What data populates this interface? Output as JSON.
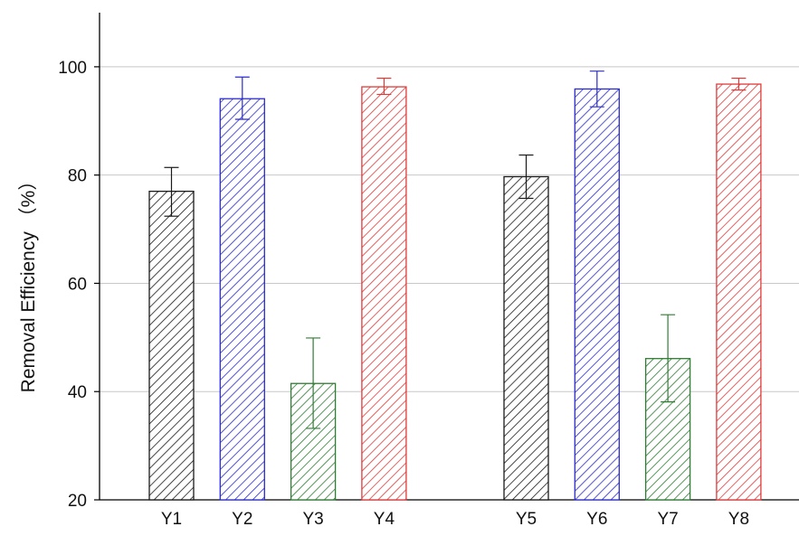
{
  "chart_data": {
    "type": "bar",
    "title": "",
    "xlabel": "",
    "ylabel": "Removal Efficiency （%）",
    "ylim": [
      20,
      110
    ],
    "yticks": [
      20,
      40,
      60,
      80,
      100
    ],
    "grid": true,
    "legend": "none",
    "groups": [
      [
        "Y1",
        "Y2",
        "Y3",
        "Y4"
      ],
      [
        "Y5",
        "Y6",
        "Y7",
        "Y8"
      ]
    ],
    "categories": [
      "Y1",
      "Y2",
      "Y3",
      "Y4",
      "Y5",
      "Y6",
      "Y7",
      "Y8"
    ],
    "values": [
      77.0,
      94.1,
      41.5,
      96.3,
      79.7,
      95.9,
      46.1,
      96.8
    ],
    "error_high": [
      81.4,
      98.1,
      49.9,
      97.9,
      83.7,
      99.2,
      54.2,
      97.9
    ],
    "error_low": [
      72.4,
      90.3,
      33.2,
      94.9,
      75.7,
      92.6,
      38.1,
      95.7
    ],
    "colors": [
      "#1a1a1a",
      "#2b2bcc",
      "#2e7d32",
      "#e03a3a",
      "#1a1a1a",
      "#2b2bcc",
      "#2e7d32",
      "#e03a3a"
    ]
  }
}
